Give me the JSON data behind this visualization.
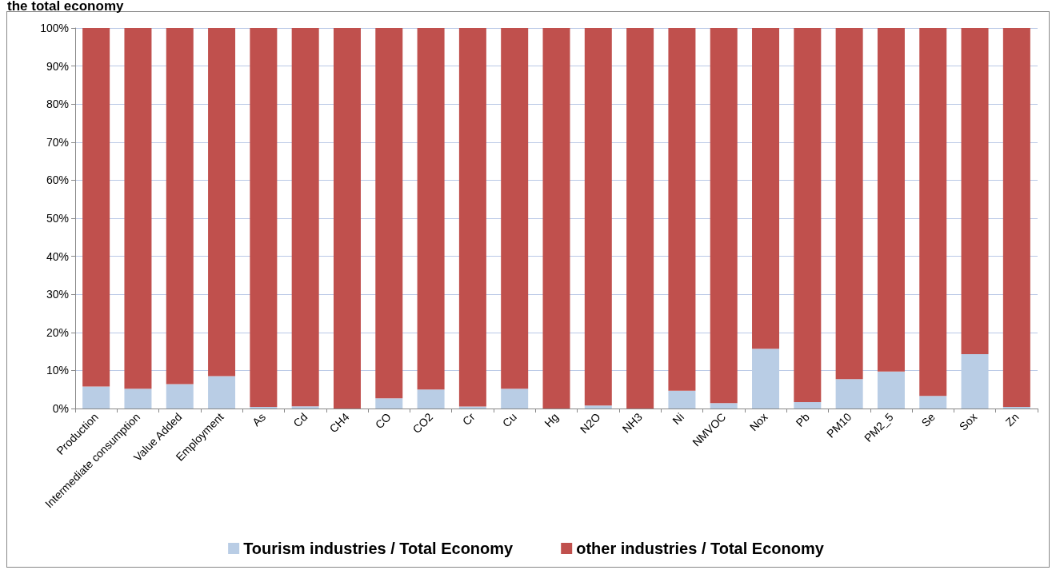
{
  "chart_data": {
    "type": "bar",
    "title": "the total economy",
    "stacked": true,
    "categories": [
      "Production",
      "Intermediate consumption",
      "Value Added",
      "Employment",
      "As",
      "Cd",
      "CH4",
      "CO",
      "CO2",
      "Cr",
      "Cu",
      "Hg",
      "N2O",
      "NH3",
      "Ni",
      "NMVOC",
      "Nox",
      "Pb",
      "PM10",
      "PM2_5",
      "Se",
      "Sox",
      "Zn"
    ],
    "series": [
      {
        "name": "Tourism industries / Total Economy",
        "color": "#b9cde5",
        "values": [
          5.8,
          5.2,
          6.4,
          8.5,
          0.4,
          0.6,
          null,
          2.7,
          5.0,
          0.5,
          5.2,
          null,
          0.8,
          null,
          4.7,
          1.4,
          15.7,
          1.7,
          7.7,
          9.7,
          3.3,
          14.3,
          0.4
        ]
      },
      {
        "name": "other industries / Total Economy",
        "color": "#c0504d",
        "values": [
          94.2,
          94.8,
          93.6,
          91.5,
          99.6,
          99.4,
          100,
          97.3,
          95.0,
          99.5,
          94.8,
          100,
          99.2,
          100,
          95.3,
          98.6,
          84.3,
          98.3,
          92.3,
          90.3,
          96.7,
          85.7,
          99.6
        ]
      }
    ],
    "ylim": [
      0,
      100
    ],
    "yticks": [
      {
        "value": 0,
        "label": "0%"
      },
      {
        "value": 10,
        "label": "10%"
      },
      {
        "value": 20,
        "label": "20%"
      },
      {
        "value": 30,
        "label": "30%"
      },
      {
        "value": 40,
        "label": "40%"
      },
      {
        "value": 50,
        "label": "50%"
      },
      {
        "value": 60,
        "label": "60%"
      },
      {
        "value": 70,
        "label": "70%"
      },
      {
        "value": 80,
        "label": "80%"
      },
      {
        "value": 90,
        "label": "90%"
      },
      {
        "value": 100,
        "label": "100%"
      }
    ],
    "grid": "y",
    "legend": "bottom"
  }
}
